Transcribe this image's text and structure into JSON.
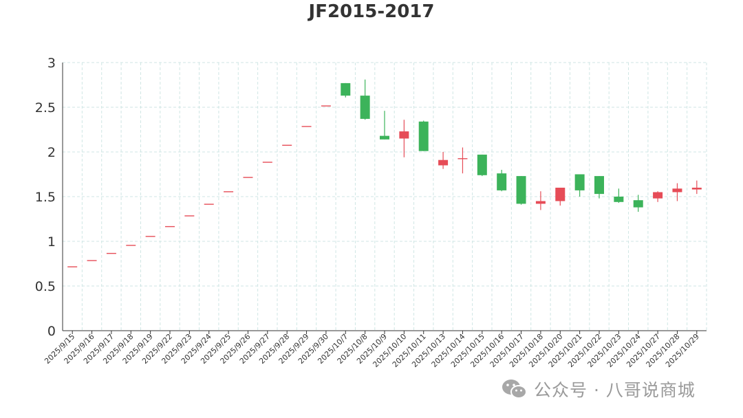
{
  "chart_data": {
    "type": "candlestick",
    "title": "JF2015-2017",
    "xlabel": "",
    "ylabel": "",
    "ylim": [
      0,
      3
    ],
    "yticks": [
      "0",
      "0.5",
      "1",
      "1.5",
      "2",
      "2.5",
      "3"
    ],
    "grid": true,
    "legend": false,
    "colors": {
      "up": "#e64c57",
      "down": "#3cb35a",
      "axis": "#333333",
      "grid": "#cfe6e4"
    },
    "categories": [
      "2025/9/15",
      "2025/9/16",
      "2025/9/17",
      "2025/9/18",
      "2025/9/19",
      "2025/9/22",
      "2025/9/23",
      "2025/9/24",
      "2025/9/25",
      "2025/9/26",
      "2025/9/27",
      "2025/9/28",
      "2025/9/29",
      "2025/9/30",
      "2025/10/7",
      "2025/10/8",
      "2025/10/9",
      "2025/10/10",
      "2025/10/11",
      "2025/10/13",
      "2025/10/14",
      "2025/10/15",
      "2025/10/16",
      "2025/10/17",
      "2025/10/18",
      "2025/10/20",
      "2025/10/21",
      "2025/10/22",
      "2025/10/23",
      "2025/10/24",
      "2025/10/27",
      "2025/10/28",
      "2025/10/29"
    ],
    "ohlc": [
      [
        0.72,
        0.72,
        0.72,
        0.72
      ],
      [
        0.79,
        0.79,
        0.79,
        0.79
      ],
      [
        0.87,
        0.87,
        0.87,
        0.87
      ],
      [
        0.96,
        0.96,
        0.96,
        0.96
      ],
      [
        1.06,
        1.06,
        1.06,
        1.06
      ],
      [
        1.17,
        1.17,
        1.17,
        1.17
      ],
      [
        1.29,
        1.29,
        1.29,
        1.29
      ],
      [
        1.42,
        1.42,
        1.42,
        1.42
      ],
      [
        1.56,
        1.56,
        1.56,
        1.56
      ],
      [
        1.72,
        1.72,
        1.72,
        1.72
      ],
      [
        1.89,
        1.89,
        1.89,
        1.89
      ],
      [
        2.08,
        2.08,
        2.08,
        2.08
      ],
      [
        2.29,
        2.29,
        2.29,
        2.29
      ],
      [
        2.52,
        2.52,
        2.52,
        2.52
      ],
      [
        2.77,
        2.77,
        2.61,
        2.63
      ],
      [
        2.63,
        2.81,
        2.36,
        2.37
      ],
      [
        2.18,
        2.46,
        2.14,
        2.14
      ],
      [
        2.15,
        2.36,
        1.94,
        2.23
      ],
      [
        2.34,
        2.35,
        2.01,
        2.01
      ],
      [
        1.85,
        2.0,
        1.81,
        1.91
      ],
      [
        1.92,
        2.05,
        1.76,
        1.93
      ],
      [
        1.97,
        1.97,
        1.73,
        1.74
      ],
      [
        1.76,
        1.8,
        1.56,
        1.57
      ],
      [
        1.73,
        1.73,
        1.41,
        1.42
      ],
      [
        1.42,
        1.56,
        1.35,
        1.45
      ],
      [
        1.45,
        1.6,
        1.4,
        1.6
      ],
      [
        1.75,
        1.75,
        1.5,
        1.57
      ],
      [
        1.73,
        1.73,
        1.48,
        1.53
      ],
      [
        1.5,
        1.59,
        1.43,
        1.44
      ],
      [
        1.46,
        1.52,
        1.33,
        1.38
      ],
      [
        1.48,
        1.56,
        1.44,
        1.55
      ],
      [
        1.55,
        1.65,
        1.45,
        1.59
      ],
      [
        1.58,
        1.68,
        1.53,
        1.6
      ]
    ]
  },
  "watermark": {
    "text": "公众号 · 八哥说商城",
    "icon": "wechat-logo-icon"
  }
}
